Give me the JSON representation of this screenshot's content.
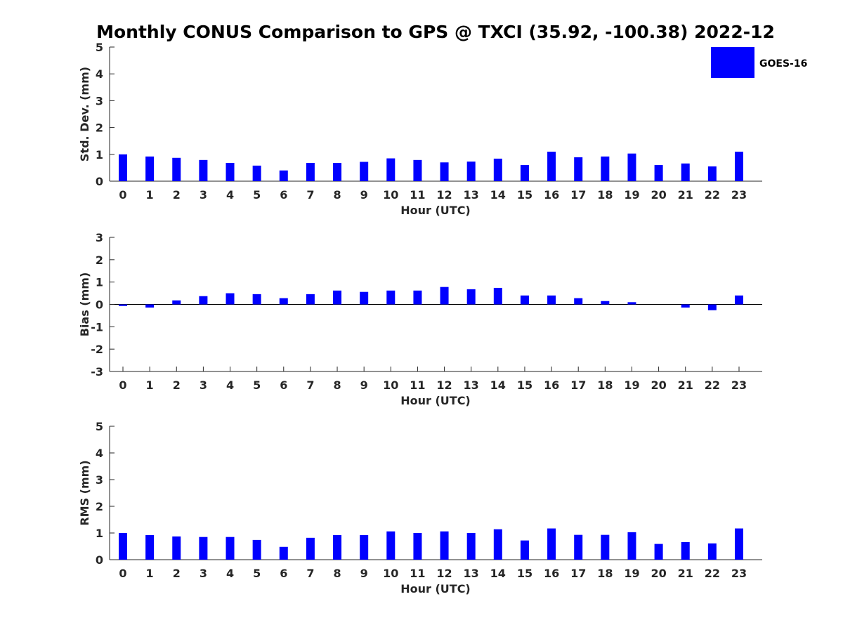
{
  "title": "Monthly CONUS Comparison to GPS @ TXCI (35.92, -100.38) 2022-12",
  "legend": {
    "label": "GOES-16",
    "color": "#0000ff"
  },
  "chart_data": [
    {
      "type": "bar",
      "name": "std-dev",
      "ylabel": "Std. Dev. (mm)",
      "xlabel": "Hour (UTC)",
      "ylim": [
        0,
        5
      ],
      "yticks": [
        0,
        1,
        2,
        3,
        4,
        5
      ],
      "categories": [
        "0",
        "1",
        "2",
        "3",
        "4",
        "5",
        "6",
        "7",
        "8",
        "9",
        "10",
        "11",
        "12",
        "13",
        "14",
        "15",
        "16",
        "17",
        "18",
        "19",
        "20",
        "21",
        "22",
        "23"
      ],
      "series": [
        {
          "name": "GOES-16",
          "color": "#0000ff",
          "values": [
            1.0,
            0.92,
            0.87,
            0.79,
            0.68,
            0.58,
            0.4,
            0.68,
            0.68,
            0.72,
            0.85,
            0.79,
            0.7,
            0.73,
            0.84,
            0.6,
            1.1,
            0.89,
            0.92,
            1.03,
            0.6,
            0.66,
            0.55,
            1.1
          ]
        }
      ]
    },
    {
      "type": "bar",
      "name": "bias",
      "ylabel": "Bias (mm)",
      "xlabel": "Hour (UTC)",
      "ylim": [
        -3,
        3
      ],
      "yticks": [
        -3,
        -2,
        -1,
        0,
        1,
        2,
        3
      ],
      "categories": [
        "0",
        "1",
        "2",
        "3",
        "4",
        "5",
        "6",
        "7",
        "8",
        "9",
        "10",
        "11",
        "12",
        "13",
        "14",
        "15",
        "16",
        "17",
        "18",
        "19",
        "20",
        "21",
        "22",
        "23"
      ],
      "series": [
        {
          "name": "GOES-16",
          "color": "#0000ff",
          "values": [
            -0.07,
            -0.14,
            0.18,
            0.37,
            0.5,
            0.46,
            0.28,
            0.46,
            0.62,
            0.56,
            0.62,
            0.62,
            0.78,
            0.68,
            0.74,
            0.4,
            0.4,
            0.28,
            0.15,
            0.1,
            0.0,
            -0.14,
            -0.26,
            0.4
          ]
        }
      ]
    },
    {
      "type": "bar",
      "name": "rms",
      "ylabel": "RMS (mm)",
      "xlabel": "Hour (UTC)",
      "ylim": [
        0,
        5
      ],
      "yticks": [
        0,
        1,
        2,
        3,
        4,
        5
      ],
      "categories": [
        "0",
        "1",
        "2",
        "3",
        "4",
        "5",
        "6",
        "7",
        "8",
        "9",
        "10",
        "11",
        "12",
        "13",
        "14",
        "15",
        "16",
        "17",
        "18",
        "19",
        "20",
        "21",
        "22",
        "23"
      ],
      "series": [
        {
          "name": "GOES-16",
          "color": "#0000ff",
          "values": [
            1.0,
            0.92,
            0.87,
            0.85,
            0.85,
            0.74,
            0.48,
            0.82,
            0.92,
            0.92,
            1.06,
            1.0,
            1.06,
            1.0,
            1.14,
            0.72,
            1.17,
            0.93,
            0.93,
            1.03,
            0.59,
            0.66,
            0.61,
            1.17
          ]
        }
      ]
    }
  ]
}
